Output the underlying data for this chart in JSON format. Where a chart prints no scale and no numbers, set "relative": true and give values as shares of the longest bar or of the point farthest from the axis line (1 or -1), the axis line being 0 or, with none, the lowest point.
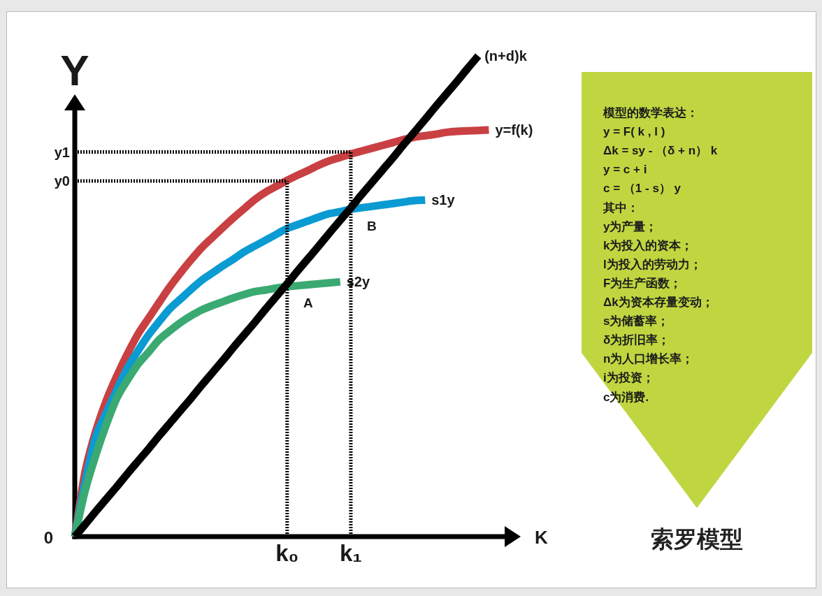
{
  "chart_data": [
    {
      "type": "line",
      "relative": true,
      "ylabel": "Y",
      "xlabel": "K",
      "tick_labels": "x",
      "categories": [
        null,
        null,
        null,
        null,
        null,
        null,
        null,
        null,
        null,
        null,
        null,
        null,
        null,
        null,
        null,
        null,
        null,
        null,
        null,
        null,
        "k₀",
        null,
        null,
        null,
        null,
        null,
        "k₁",
        null,
        null,
        null,
        null,
        null,
        null,
        null,
        null,
        null,
        null,
        null,
        null,
        null
      ],
      "series": [
        {
          "name": "y=f(k)",
          "color": "#c94043",
          "values": [
            0,
            0.138,
            0.221,
            0.285,
            0.336,
            0.382,
            0.423,
            0.456,
            0.489,
            0.521,
            0.55,
            0.577,
            0.602,
            0.623,
            0.644,
            0.664,
            0.683,
            0.702,
            0.717,
            0.729,
            0.741,
            0.752,
            0.762,
            0.773,
            0.782,
            0.789,
            0.796,
            0.802,
            0.808,
            0.814,
            0.82,
            0.826,
            0.831,
            0.834,
            0.837,
            0.841,
            0.843,
            0.844,
            0.845,
            0.846
          ]
        },
        {
          "name": "s1y",
          "color": "#0a9bd3",
          "values": [
            0,
            0.115,
            0.209,
            0.259,
            0.307,
            0.352,
            0.388,
            0.421,
            0.449,
            0.475,
            0.495,
            0.515,
            0.534,
            0.549,
            0.564,
            0.578,
            0.593,
            0.605,
            0.617,
            0.629,
            0.641,
            0.649,
            0.657,
            0.665,
            0.672,
            0.676,
            0.681,
            0.684,
            0.687,
            0.69,
            0.693,
            0.696,
            0.699,
            0.7,
            null,
            null,
            null,
            null,
            null,
            null
          ]
        },
        {
          "name": "s2y",
          "color": "#3aaa72",
          "values": [
            0,
            0.098,
            0.171,
            0.235,
            0.29,
            0.327,
            0.36,
            0.385,
            0.411,
            0.429,
            0.446,
            0.46,
            0.472,
            0.481,
            0.489,
            0.497,
            0.504,
            0.51,
            0.513,
            0.517,
            0.52,
            0.522,
            0.524,
            0.526,
            0.528,
            0.53,
            null,
            null,
            null,
            null,
            null,
            null,
            null,
            null,
            null,
            null,
            null,
            null,
            null,
            null
          ]
        },
        {
          "name": "(n+d)k",
          "color": "#000000",
          "values": [
            0,
            0.026,
            0.053,
            0.079,
            0.105,
            0.132,
            0.158,
            0.184,
            0.211,
            0.237,
            0.263,
            0.289,
            0.316,
            0.342,
            0.368,
            0.395,
            0.421,
            0.447,
            0.474,
            0.5,
            0.526,
            0.553,
            0.579,
            0.605,
            0.632,
            0.658,
            0.684,
            0.711,
            0.737,
            0.763,
            0.789,
            0.816,
            0.842,
            0.868,
            0.895,
            0.921,
            0.947,
            0.974,
            1,
            null
          ]
        }
      ],
      "ref_lines": [
        {
          "axis": "x",
          "value": "k₀",
          "line_style": "dotted",
          "color": "#000000"
        },
        {
          "axis": "x",
          "value": "k₁",
          "line_style": "dotted",
          "color": "#000000"
        },
        {
          "axis": "y",
          "value": 0.74,
          "label": "y0",
          "line_style": "dotted",
          "color": "#000000"
        },
        {
          "axis": "y",
          "value": 0.8,
          "label": "y1",
          "line_style": "dotted",
          "color": "#000000"
        }
      ],
      "annotations": [
        "0",
        {
          "text": "A",
          "x": "k₀",
          "y": 0.52
        },
        {
          "text": "B",
          "x": "k₁",
          "y": 0.68
        }
      ]
    },
    {
      "type": "other",
      "title": "索罗模型",
      "annotations": [
        "模型的数学表达：",
        "y = F( k , l )",
        "Δk = sy - （δ + n） k",
        "y = c + i",
        "c = （1 - s） y",
        "其中：",
        "y为产量；",
        "k为投入的资本；",
        "l为投入的劳动力；",
        "F为生产函数；",
        "Δk为资本存量变动；",
        "s为储蓄率；",
        "δ为折旧率；",
        "n为人口增长率；",
        "i为投资；",
        "c为消费."
      ]
    }
  ]
}
